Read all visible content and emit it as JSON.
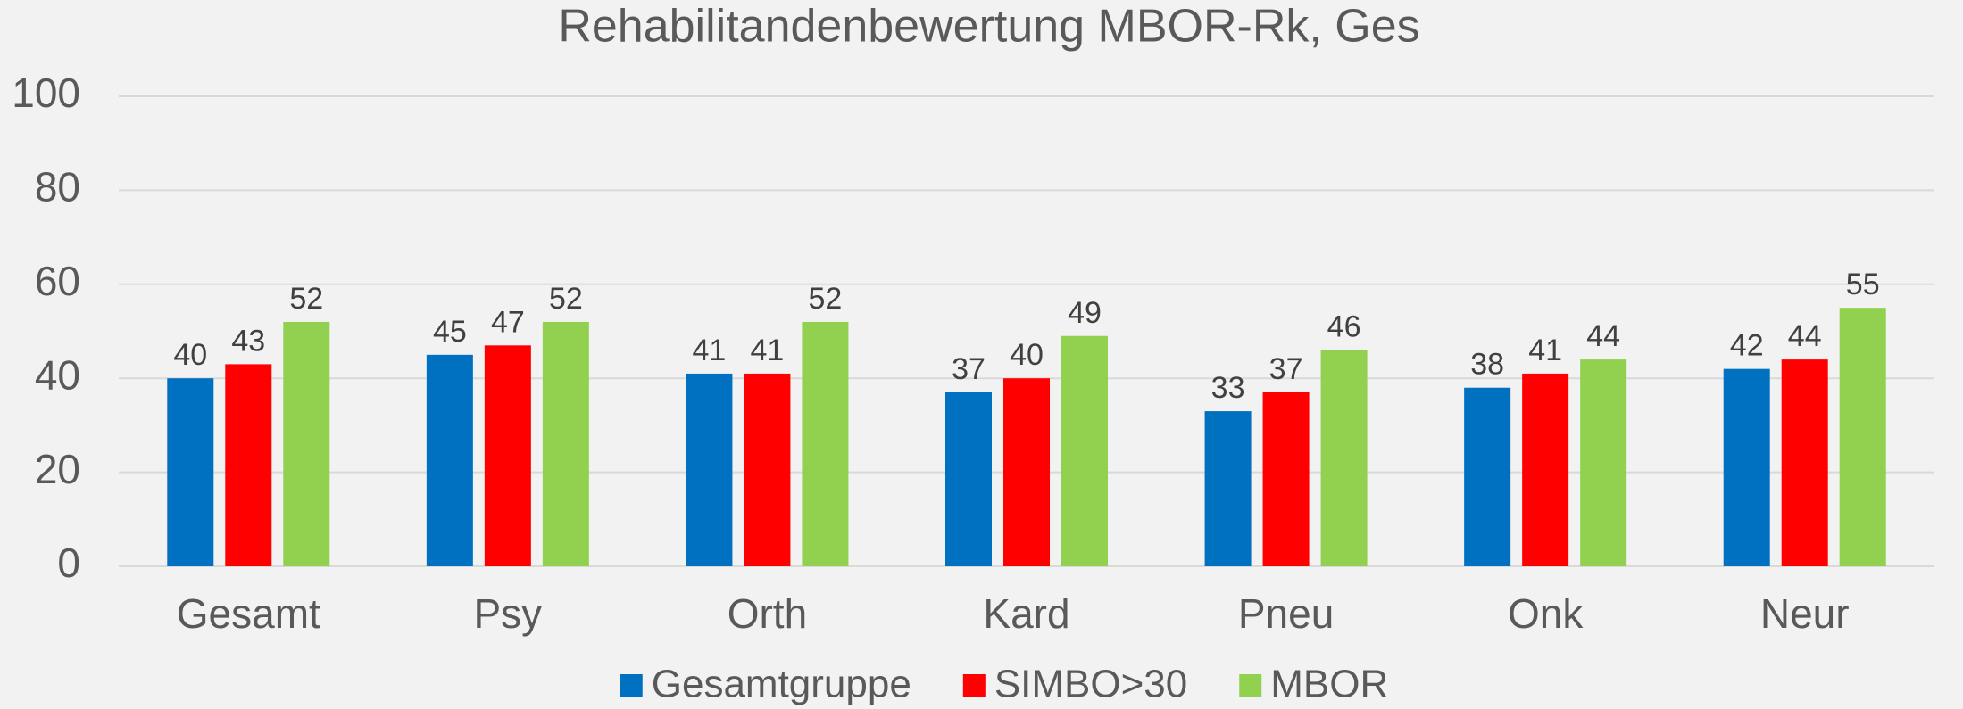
{
  "chart_data": {
    "type": "bar",
    "title": "Rehabilitandenbewertung MBOR-Rk, Ges",
    "categories": [
      "Gesamt",
      "Psy",
      "Orth",
      "Kard",
      "Pneu",
      "Onk",
      "Neur"
    ],
    "series": [
      {
        "name": "Gesamtgruppe",
        "color": "#0070c0",
        "values": [
          40,
          45,
          41,
          37,
          33,
          38,
          42
        ]
      },
      {
        "name": "SIMBO>30",
        "color": "#ff0000",
        "values": [
          43,
          47,
          41,
          40,
          37,
          41,
          44
        ]
      },
      {
        "name": "MBOR",
        "color": "#92d050",
        "values": [
          52,
          52,
          52,
          49,
          46,
          44,
          55
        ]
      }
    ],
    "ylim": [
      0,
      100
    ],
    "yticks": [
      0,
      20,
      40,
      60,
      80,
      100
    ],
    "grid": true,
    "legend": "bottom"
  }
}
